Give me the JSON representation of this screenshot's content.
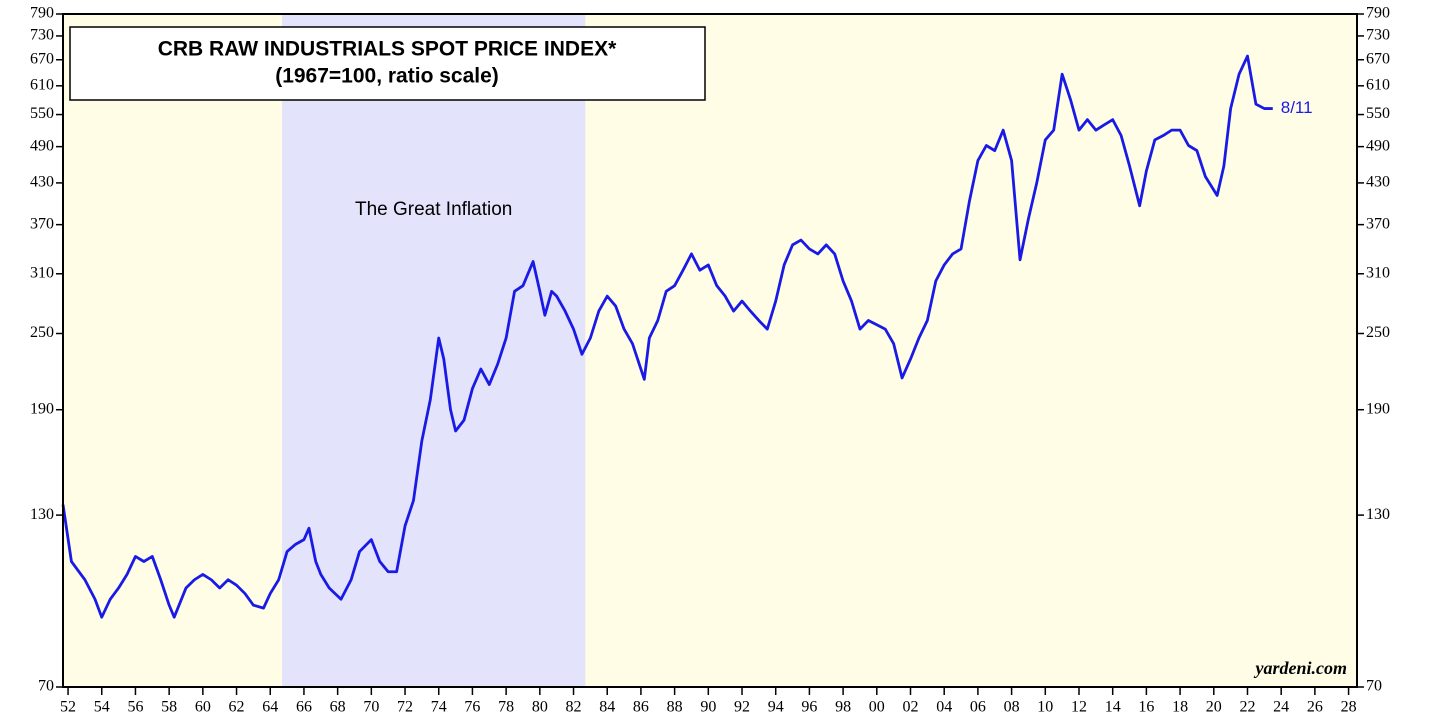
{
  "chart_data": {
    "type": "line",
    "title": "CRB RAW INDUSTRIALS SPOT PRICE INDEX*",
    "subtitle": "(1967=100, ratio scale)",
    "annotation": "The Great Inflation",
    "end_label": "8/11",
    "watermark": "yardeni.com",
    "shade": [
      1964.7,
      1982.7
    ],
    "color": "#1a1ae6",
    "log_scale": true,
    "xlim": [
      1951.7,
      2028.5
    ],
    "ylim": [
      70,
      790
    ],
    "yticks": [
      70,
      130,
      190,
      250,
      310,
      370,
      430,
      490,
      550,
      610,
      670,
      730,
      790
    ],
    "xticks": [
      {
        "value": 1952,
        "label": "52"
      },
      {
        "value": 1954,
        "label": "54"
      },
      {
        "value": 1956,
        "label": "56"
      },
      {
        "value": 1958,
        "label": "58"
      },
      {
        "value": 1960,
        "label": "60"
      },
      {
        "value": 1962,
        "label": "62"
      },
      {
        "value": 1964,
        "label": "64"
      },
      {
        "value": 1966,
        "label": "66"
      },
      {
        "value": 1968,
        "label": "68"
      },
      {
        "value": 1970,
        "label": "70"
      },
      {
        "value": 1972,
        "label": "72"
      },
      {
        "value": 1974,
        "label": "74"
      },
      {
        "value": 1976,
        "label": "76"
      },
      {
        "value": 1978,
        "label": "78"
      },
      {
        "value": 1980,
        "label": "80"
      },
      {
        "value": 1982,
        "label": "82"
      },
      {
        "value": 1984,
        "label": "84"
      },
      {
        "value": 1986,
        "label": "86"
      },
      {
        "value": 1988,
        "label": "88"
      },
      {
        "value": 1990,
        "label": "90"
      },
      {
        "value": 1992,
        "label": "92"
      },
      {
        "value": 1994,
        "label": "94"
      },
      {
        "value": 1996,
        "label": "96"
      },
      {
        "value": 1998,
        "label": "98"
      },
      {
        "value": 2000,
        "label": "00"
      },
      {
        "value": 2002,
        "label": "02"
      },
      {
        "value": 2004,
        "label": "04"
      },
      {
        "value": 2006,
        "label": "06"
      },
      {
        "value": 2008,
        "label": "08"
      },
      {
        "value": 2010,
        "label": "10"
      },
      {
        "value": 2012,
        "label": "12"
      },
      {
        "value": 2014,
        "label": "14"
      },
      {
        "value": 2016,
        "label": "16"
      },
      {
        "value": 2018,
        "label": "18"
      },
      {
        "value": 2020,
        "label": "20"
      },
      {
        "value": 2022,
        "label": "22"
      },
      {
        "value": 2024,
        "label": "24"
      },
      {
        "value": 2026,
        "label": "26"
      },
      {
        "value": 2028,
        "label": "28"
      }
    ],
    "x": [
      1951.7,
      1952.2,
      1953,
      1953.6,
      1954,
      1954.5,
      1955,
      1955.5,
      1956,
      1956.5,
      1957,
      1957.5,
      1958,
      1958.3,
      1959,
      1959.5,
      1960,
      1960.5,
      1961,
      1961.5,
      1962,
      1962.5,
      1963,
      1963.6,
      1964,
      1964.5,
      1965,
      1965.5,
      1966,
      1966.3,
      1966.7,
      1967,
      1967.5,
      1968.2,
      1968.8,
      1969.3,
      1970,
      1970.5,
      1971,
      1971.5,
      1972,
      1972.5,
      1973,
      1973.5,
      1974,
      1974.3,
      1974.7,
      1975,
      1975.5,
      1976,
      1976.5,
      1977,
      1977.5,
      1978,
      1978.5,
      1979,
      1979.6,
      1980,
      1980.3,
      1980.7,
      1981,
      1981.5,
      1982,
      1982.5,
      1983,
      1983.5,
      1984,
      1984.5,
      1985,
      1985.5,
      1986.2,
      1986.5,
      1987,
      1987.5,
      1988,
      1988.5,
      1989,
      1989.5,
      1990,
      1990.5,
      1991,
      1991.5,
      1992,
      1992.5,
      1993,
      1993.5,
      1994,
      1994.5,
      1995,
      1995.5,
      1996,
      1996.5,
      1997,
      1997.5,
      1998,
      1998.5,
      1999,
      1999.5,
      2000,
      2000.5,
      2001,
      2001.5,
      2002,
      2002.5,
      2003,
      2003.5,
      2004,
      2004.5,
      2005,
      2005.5,
      2006,
      2006.5,
      2007,
      2007.5,
      2008,
      2008.5,
      2009,
      2009.5,
      2010,
      2010.5,
      2011,
      2011.5,
      2012,
      2012.5,
      2013,
      2013.5,
      2014,
      2014.5,
      2015,
      2015.6,
      2016,
      2016.5,
      2017,
      2017.5,
      2018,
      2018.5,
      2019,
      2019.5,
      2020.2,
      2020.6,
      2021,
      2021.5,
      2022,
      2022.5,
      2023,
      2023.5
    ],
    "values": [
      135,
      110,
      103,
      96,
      90,
      96,
      100,
      105,
      112,
      110,
      112,
      103,
      94,
      90,
      100,
      103,
      105,
      103,
      100,
      103,
      101,
      98,
      94,
      93,
      98,
      103,
      114,
      117,
      119,
      124,
      110,
      105,
      100,
      96,
      103,
      114,
      119,
      110,
      106,
      106,
      125,
      137,
      170,
      197,
      246,
      228,
      190,
      176,
      183,
      205,
      220,
      208,
      224,
      246,
      291,
      297,
      324,
      291,
      267,
      291,
      286,
      271,
      254,
      232,
      246,
      271,
      286,
      276,
      254,
      241,
      212,
      246,
      262,
      291,
      297,
      314,
      333,
      314,
      320,
      297,
      286,
      271,
      281,
      271,
      262,
      254,
      281,
      320,
      344,
      350,
      339,
      333,
      344,
      333,
      302,
      281,
      254,
      262,
      258,
      254,
      241,
      213,
      228,
      246,
      262,
      302,
      320,
      333,
      339,
      403,
      466,
      492,
      483,
      520,
      466,
      326,
      378,
      431,
      502,
      520,
      636,
      580,
      520,
      540,
      520,
      530,
      540,
      510,
      457,
      396,
      449,
      502,
      510,
      520,
      520,
      492,
      483,
      440,
      411,
      457,
      562,
      636,
      679,
      571,
      562,
      562
    ]
  }
}
